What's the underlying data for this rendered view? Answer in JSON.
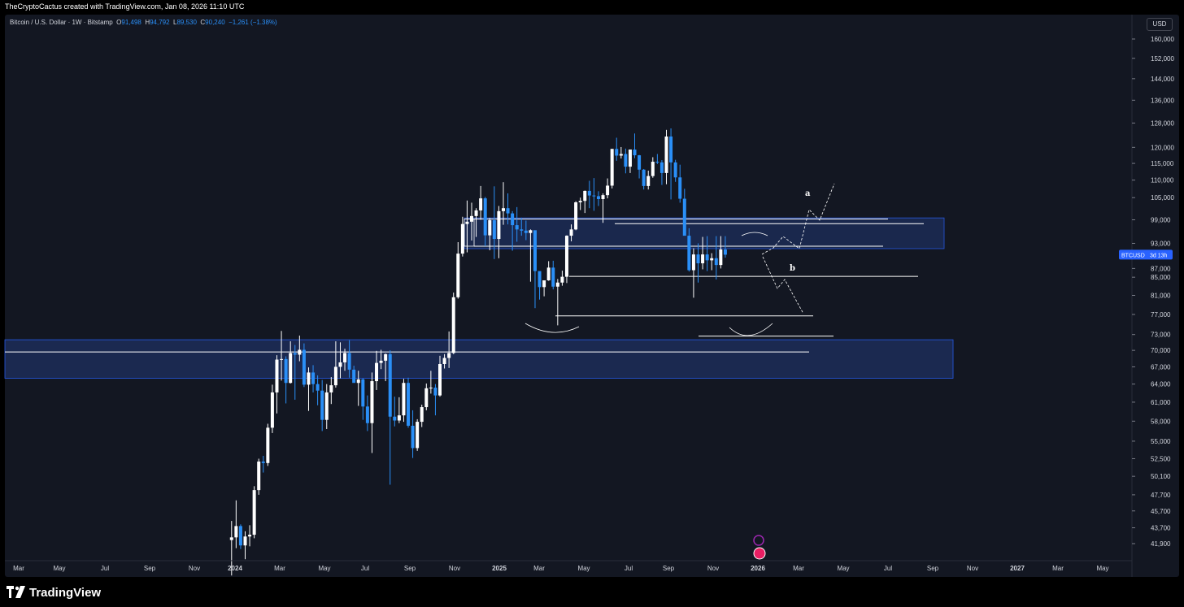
{
  "header": {
    "attribution": "TheCryptoCactus created with TradingView.com, Jan 08, 2026 11:10 UTC"
  },
  "legend": {
    "symbol": "Bitcoin / U.S. Dollar · 1W · Bitstamp",
    "open_label": "O",
    "open": "91,498",
    "high_label": "H",
    "high": "94,792",
    "low_label": "L",
    "low": "89,530",
    "close_label": "C",
    "close": "90,240",
    "change": "−1,261 (−1.38%)"
  },
  "currency_button": "USD",
  "price_tag": {
    "symbol": "BTCUSD",
    "countdown": "3d 13h",
    "value": 90240
  },
  "brand": {
    "name": "TradingView"
  },
  "colors": {
    "up": "#ffffff",
    "down": "#2a8ff7",
    "zone": "#1c2b55",
    "accent": "#2962ff",
    "background": "#131722"
  },
  "chart_data": {
    "type": "candlestick",
    "title": "Bitcoin / U.S. Dollar · 1W · Bitstamp",
    "y_scale": "log",
    "y_ticks": [
      "160,000",
      "152,000",
      "144,000",
      "136,000",
      "128,000",
      "120,000",
      "115,000",
      "110,000",
      "105,000",
      "99,000",
      "93,000",
      "87,000",
      "85,000",
      "81,000",
      "77,000",
      "73,000",
      "70,000",
      "67,000",
      "64,000",
      "61,000",
      "58,000",
      "55,000",
      "52,500",
      "50,100",
      "47,700",
      "45,700",
      "43,700",
      "41,900"
    ],
    "x_ticks": [
      "Mar",
      "May",
      "Jul",
      "Sep",
      "Nov",
      "2024",
      "Mar",
      "May",
      "Jul",
      "Sep",
      "Nov",
      "2025",
      "Mar",
      "May",
      "Jul",
      "Sep",
      "Nov",
      "2026",
      "Mar",
      "May",
      "Jul",
      "Sep",
      "Nov",
      "2027",
      "Mar",
      "May"
    ],
    "x_tick_bold": [
      false,
      false,
      false,
      false,
      false,
      true,
      false,
      false,
      false,
      false,
      false,
      true,
      false,
      false,
      false,
      false,
      false,
      true,
      false,
      false,
      false,
      false,
      false,
      true,
      false,
      false
    ],
    "series": [
      {
        "values": [
          [
            42300,
            44500,
            38500,
            42600
          ],
          [
            42600,
            47000,
            41400,
            43900
          ],
          [
            43900,
            44100,
            41300,
            41700
          ],
          [
            41700,
            43300,
            40200,
            42700
          ],
          [
            42700,
            44000,
            41600,
            42900
          ],
          [
            42900,
            48800,
            42500,
            48300
          ],
          [
            48300,
            52500,
            47700,
            52100
          ],
          [
            52100,
            52900,
            50600,
            51900
          ],
          [
            51900,
            57600,
            51500,
            57000
          ],
          [
            57000,
            63900,
            56200,
            62600
          ],
          [
            62600,
            69100,
            59200,
            68300
          ],
          [
            68300,
            73700,
            64600,
            68400
          ],
          [
            68400,
            68900,
            60800,
            64200
          ],
          [
            64200,
            71700,
            64100,
            69500
          ],
          [
            69500,
            71000,
            61400,
            69200
          ],
          [
            69200,
            72800,
            68000,
            70100
          ],
          [
            70100,
            71300,
            63500,
            63900
          ],
          [
            63900,
            66900,
            59600,
            66000
          ],
          [
            66000,
            67300,
            62600,
            64000
          ],
          [
            64000,
            65500,
            60500,
            62900
          ],
          [
            62900,
            64700,
            56500,
            58200
          ],
          [
            58200,
            64000,
            56800,
            62600
          ],
          [
            62600,
            65200,
            60700,
            63800
          ],
          [
            63800,
            71700,
            63400,
            67000
          ],
          [
            67000,
            71500,
            65000,
            67800
          ],
          [
            67800,
            70300,
            66300,
            69500
          ],
          [
            69500,
            71900,
            65100,
            66500
          ],
          [
            66500,
            67200,
            64300,
            64200
          ],
          [
            64200,
            66300,
            60400,
            64800
          ],
          [
            64800,
            65000,
            58200,
            60300
          ],
          [
            60300,
            62100,
            56500,
            57700
          ],
          [
            57700,
            66000,
            53300,
            64500
          ],
          [
            64500,
            69900,
            63000,
            67700
          ],
          [
            67700,
            70100,
            66600,
            68100
          ],
          [
            68100,
            69400,
            64500,
            69300
          ],
          [
            69300,
            70000,
            49000,
            58700
          ],
          [
            58700,
            61900,
            57200,
            58100
          ],
          [
            58100,
            61800,
            57700,
            58900
          ],
          [
            58900,
            64900,
            57900,
            64200
          ],
          [
            64200,
            65100,
            57000,
            57300
          ],
          [
            57300,
            59700,
            52600,
            54000
          ],
          [
            54000,
            58300,
            53600,
            57900
          ],
          [
            57900,
            60600,
            57100,
            60200
          ],
          [
            60200,
            64100,
            59700,
            63300
          ],
          [
            63300,
            66300,
            62400,
            63400
          ],
          [
            63400,
            64000,
            58900,
            62100
          ],
          [
            62100,
            69000,
            61900,
            67500
          ],
          [
            67500,
            69300,
            66700,
            68600
          ],
          [
            68600,
            73600,
            66800,
            69500
          ],
          [
            69500,
            81600,
            69300,
            80600
          ],
          [
            80600,
            93300,
            80300,
            90500
          ],
          [
            90500,
            99800,
            89800,
            97900
          ],
          [
            97900,
            104200,
            90800,
            98500
          ],
          [
            98500,
            103600,
            93700,
            100000
          ],
          [
            100000,
            102100,
            94600,
            101500
          ],
          [
            101500,
            108300,
            99000,
            104800
          ],
          [
            104800,
            105200,
            92300,
            95000
          ],
          [
            95000,
            99500,
            91300,
            98900
          ],
          [
            98900,
            108200,
            89200,
            94100
          ],
          [
            94100,
            102700,
            89400,
            101300
          ],
          [
            101300,
            109400,
            97700,
            102100
          ],
          [
            102100,
            106200,
            97800,
            100700
          ],
          [
            100700,
            101300,
            91200,
            97600
          ],
          [
            97600,
            102400,
            93400,
            96500
          ],
          [
            96500,
            99500,
            94900,
            96200
          ],
          [
            96200,
            98800,
            93800,
            95600
          ],
          [
            95600,
            96500,
            84000,
            96300
          ],
          [
            96300,
            92800,
            78300,
            86400
          ],
          [
            86400,
            84600,
            80100,
            82800
          ],
          [
            82800,
            83000,
            80800,
            84300
          ],
          [
            84300,
            88700,
            84200,
            87200
          ],
          [
            87200,
            88800,
            82300,
            82900
          ],
          [
            82900,
            84600,
            74800,
            83800
          ],
          [
            83800,
            86500,
            83100,
            85100
          ],
          [
            85100,
            95000,
            83700,
            94900
          ],
          [
            94900,
            97800,
            93500,
            96500
          ],
          [
            96500,
            104000,
            96300,
            103700
          ],
          [
            103700,
            105000,
            101600,
            104100
          ],
          [
            104100,
            107000,
            100800,
            106900
          ],
          [
            106900,
            109800,
            102100,
            105600
          ],
          [
            105600,
            110600,
            101400,
            105400
          ],
          [
            105400,
            106800,
            102700,
            104600
          ],
          [
            104600,
            106200,
            98200,
            105700
          ],
          [
            105700,
            110500,
            104800,
            108400
          ],
          [
            108400,
            119500,
            107600,
            119500
          ],
          [
            119500,
            123100,
            115800,
            117400
          ],
          [
            117400,
            120100,
            116500,
            117900
          ],
          [
            117900,
            119600,
            112000,
            114000
          ],
          [
            114000,
            117500,
            112100,
            119300
          ],
          [
            119300,
            124500,
            116600,
            117500
          ],
          [
            117500,
            117600,
            110500,
            113100
          ],
          [
            113100,
            113300,
            107300,
            108300
          ],
          [
            108300,
            112800,
            107300,
            111200
          ],
          [
            111200,
            116900,
            110700,
            115500
          ],
          [
            115500,
            117900,
            114800,
            115300
          ],
          [
            115300,
            116000,
            108600,
            112100
          ],
          [
            112100,
            125700,
            108800,
            123500
          ],
          [
            123500,
            126200,
            104500,
            115300
          ],
          [
            115300,
            116100,
            109500,
            110800
          ],
          [
            110800,
            114600,
            103600,
            104700
          ],
          [
            104700,
            107500,
            100300,
            94900
          ],
          [
            94900,
            96800,
            86300,
            86600
          ],
          [
            86600,
            91800,
            80500,
            90300
          ],
          [
            90300,
            93000,
            83800,
            88200
          ],
          [
            88200,
            94600,
            86800,
            90300
          ],
          [
            90300,
            94800,
            86400,
            88900
          ],
          [
            88900,
            90600,
            86600,
            89400
          ],
          [
            89400,
            94800,
            84500,
            87800
          ],
          [
            87800,
            94800,
            87000,
            91500
          ],
          [
            91498,
            94792,
            89530,
            90240
          ]
        ]
      }
    ]
  }
}
